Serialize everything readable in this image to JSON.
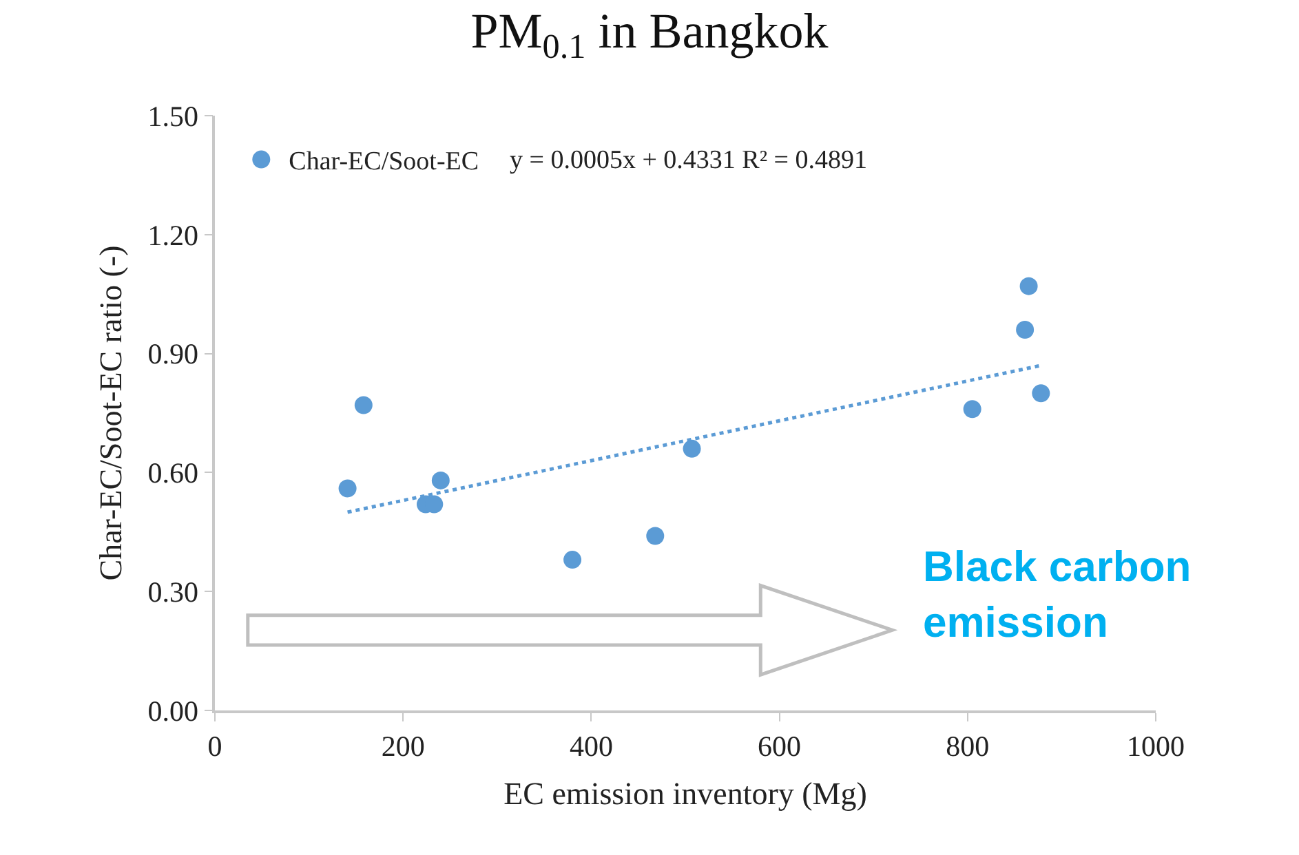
{
  "chart_data": {
    "type": "scatter",
    "title": "PM$_{0.1}$ in Bangkok",
    "xlabel": "EC emission inventory (Mg)",
    "ylabel": "Char-EC/Soot-EC ratio (-)",
    "x": [
      141,
      158,
      224,
      233,
      240,
      380,
      468,
      507,
      805,
      861,
      865,
      878
    ],
    "series": [
      {
        "name": "Char-EC/Soot-EC",
        "color": "#5b9bd5",
        "values": [
          0.56,
          0.77,
          0.52,
          0.52,
          0.58,
          0.38,
          0.44,
          0.66,
          0.76,
          0.96,
          1.07,
          0.8
        ],
        "marker": "circle"
      },
      {
        "type": "line",
        "color": "#5b9bd5",
        "x": [
          141,
          878
        ],
        "values": [
          0.5,
          0.87
        ],
        "line_style": "dotted",
        "marker": "none"
      }
    ],
    "xlim": [
      0,
      1000
    ],
    "xticks": [
      0,
      200,
      400,
      600,
      800,
      1000
    ],
    "ylim": [
      0,
      1.5
    ],
    "yticks": [
      {
        "value": 0,
        "label": "0.00"
      },
      {
        "value": 0.3,
        "label": "0.30"
      },
      {
        "value": 0.6,
        "label": "0.60"
      },
      {
        "value": 0.9,
        "label": "0.90"
      },
      {
        "value": 1.2,
        "label": "1.20"
      },
      {
        "value": 1.5,
        "label": "1.50"
      }
    ],
    "grid": false,
    "legend": "top left",
    "annotations": [
      "y = 0.0005x + 0.4331 R² = 0.4891",
      "Black carbon\nemission"
    ]
  }
}
